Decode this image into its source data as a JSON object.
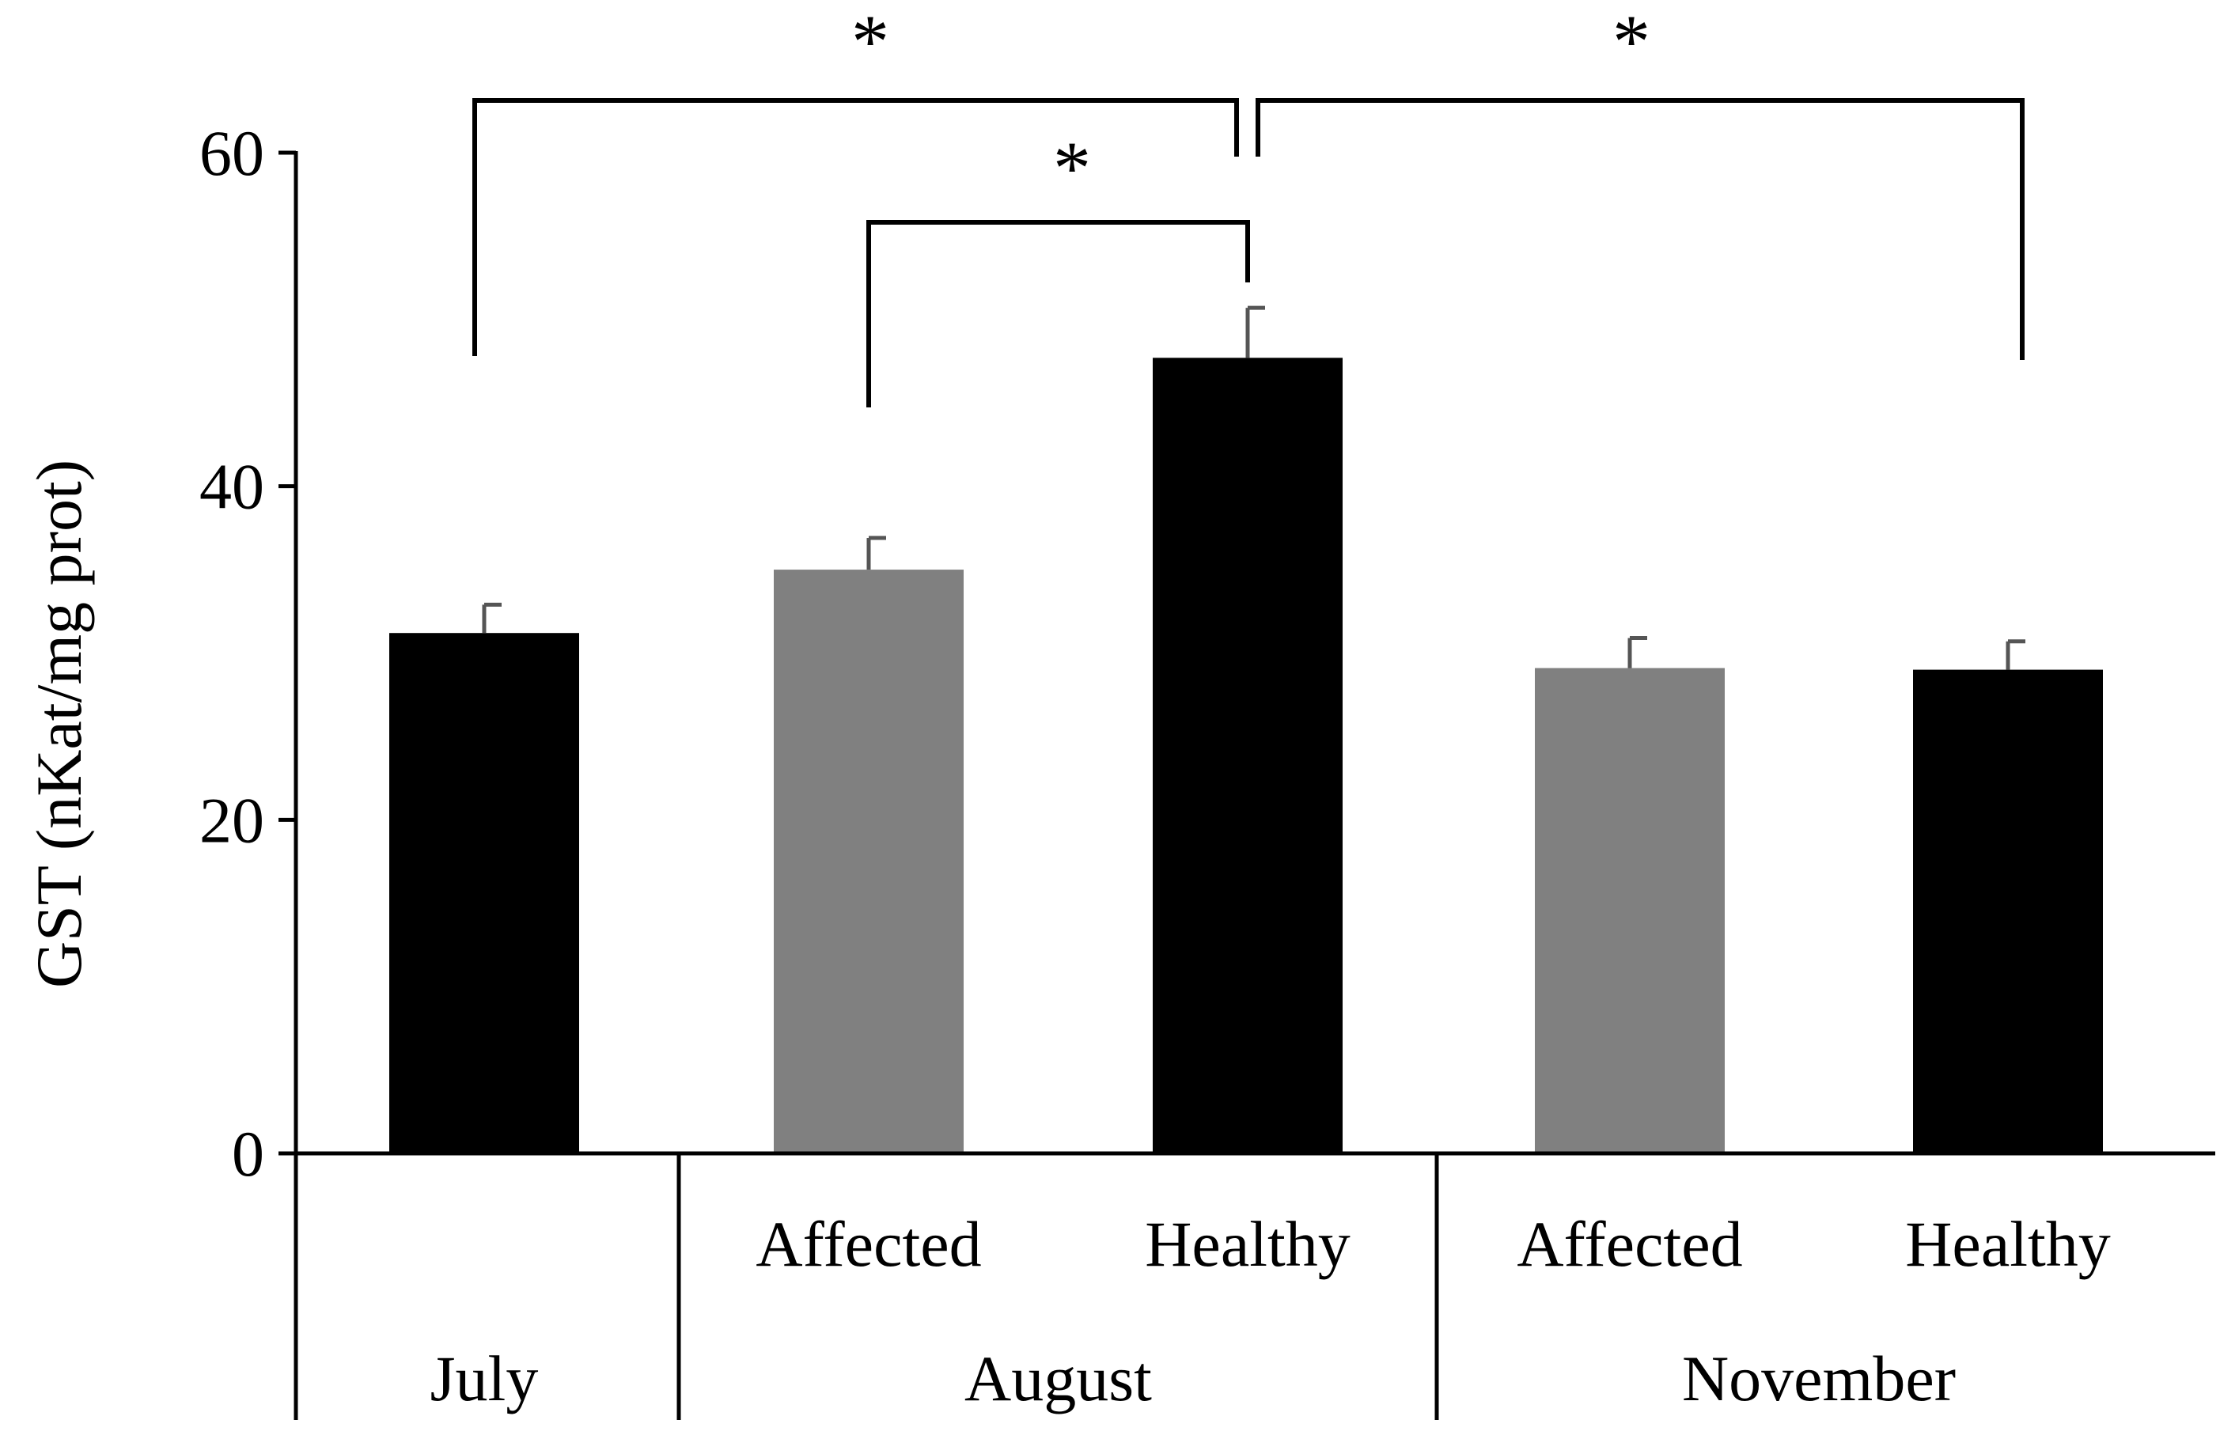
{
  "chart_data": {
    "type": "bar",
    "ylabel": "GST (nKat/mg prot)",
    "ylim": [
      0,
      60
    ],
    "yticks": [
      0,
      20,
      40,
      60
    ],
    "grid": false,
    "categories": [
      "",
      "Affected",
      "Healthy",
      "Affected",
      "Healthy"
    ],
    "groups": [
      {
        "label": "July",
        "bars": [
          0
        ]
      },
      {
        "label": "August",
        "bars": [
          1,
          2
        ]
      },
      {
        "label": "November",
        "bars": [
          3,
          4
        ]
      }
    ],
    "values": [
      31.2,
      35.0,
      47.7,
      29.1,
      29.0
    ],
    "errors": [
      1.7,
      1.9,
      3.0,
      1.8,
      1.7
    ],
    "bar_colors": [
      "#000000",
      "#808080",
      "#000000",
      "#808080",
      "#000000"
    ],
    "error_color": "#555555",
    "significance": [
      {
        "from": 0,
        "to": 2,
        "label": "*"
      },
      {
        "from": 1,
        "to": 2,
        "label": "*"
      },
      {
        "from": 2,
        "to": 4,
        "label": "*"
      }
    ]
  }
}
